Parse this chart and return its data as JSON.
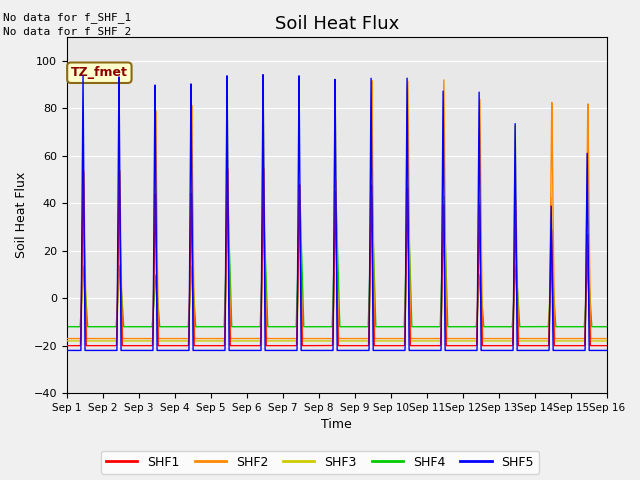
{
  "title": "Soil Heat Flux",
  "ylabel": "Soil Heat Flux",
  "xlabel": "Time",
  "ylim": [
    -40,
    110
  ],
  "xlim": [
    0,
    15
  ],
  "plot_bg": "#e8e8e8",
  "fig_bg": "#f0f0f0",
  "title_fontsize": 13,
  "note1": "No data for f_SHF_1",
  "note2": "No data for f_SHF_2",
  "tz_label": "TZ_fmet",
  "legend_labels": [
    "SHF1",
    "SHF2",
    "SHF3",
    "SHF4",
    "SHF5"
  ],
  "colors": [
    "#ff0000",
    "#ff8800",
    "#cccc00",
    "#00cc00",
    "#0000ff"
  ],
  "tick_labels": [
    "Sep 1",
    "Sep 2",
    "Sep 3",
    "Sep 4",
    "Sep 5",
    "Sep 6",
    "Sep 7",
    "Sep 8",
    "Sep 9",
    "Sep 10",
    "Sep 11",
    "Sep 12",
    "Sep 13",
    "Sep 14",
    "Sep 15",
    "Sep 16"
  ],
  "yticks": [
    -40,
    -20,
    0,
    20,
    40,
    60,
    80,
    100
  ],
  "grid_color": "#ffffff",
  "num_days": 15,
  "pts_per_day": 288
}
